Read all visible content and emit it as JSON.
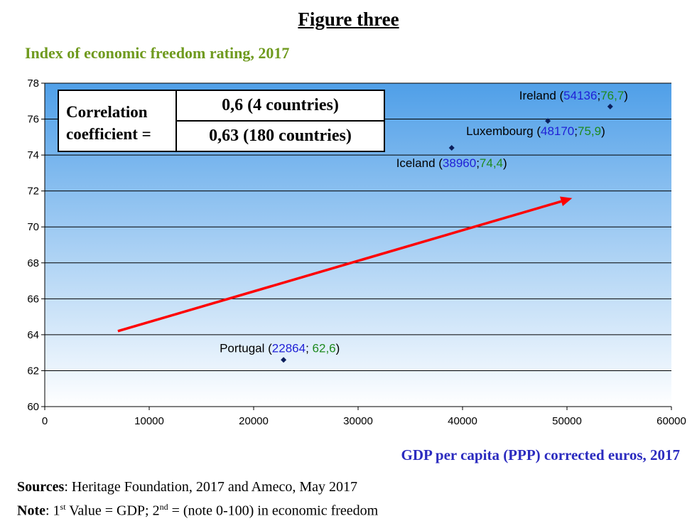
{
  "figure_title": "Figure three",
  "correlation": {
    "label": "Correlation coefficient =",
    "value_4": "0,6 (4 countries)",
    "value_180": "0,63 (180 countries)"
  },
  "sources": {
    "label": "Sources",
    "text": ": Heritage Foundation, 2017 and Ameco, May 2017"
  },
  "note": {
    "label": "Note",
    "text_pre": ": 1",
    "sup1": "st",
    "text_mid": " Value = GDP; 2",
    "sup2": "nd",
    "text_post": " = (note 0-100) in economic freedom"
  },
  "colors": {
    "title_green": "#6f9a1e",
    "xlabel_blue": "#2b2bbf",
    "gdp_blue": "#1f1fd6",
    "score_green": "#1e8a1e",
    "arrow_red": "#ff0000",
    "marker": "#0b1f5c",
    "bg_top": "#4f9fe8",
    "bg_bottom": "#ffffff"
  },
  "chart_data": {
    "type": "scatter",
    "title": "Index of economic freedom rating, 2017",
    "xlabel": "GDP per capita (PPP) corrected euros, 2017",
    "ylabel": "",
    "xlim": [
      0,
      60000
    ],
    "ylim": [
      60,
      78
    ],
    "x_ticks": [
      0,
      10000,
      20000,
      30000,
      40000,
      50000,
      60000
    ],
    "y_ticks": [
      60,
      62,
      64,
      66,
      68,
      70,
      72,
      74,
      76,
      78
    ],
    "grid": "horizontal",
    "points": [
      {
        "country": "Ireland",
        "x": 54136,
        "y": 76.7,
        "gdp_label": "54136",
        "score_label": "76,7",
        "sep": ";"
      },
      {
        "country": "Luxembourg",
        "x": 48170,
        "y": 75.9,
        "gdp_label": "48170",
        "score_label": "75,9",
        "sep": ";"
      },
      {
        "country": "Iceland",
        "x": 38960,
        "y": 74.4,
        "gdp_label": "38960",
        "score_label": "74,4",
        "sep": ";"
      },
      {
        "country": "Portugal",
        "x": 22864,
        "y": 62.6,
        "gdp_label": "22864",
        "score_label": "62,6",
        "sep": "; "
      }
    ],
    "trend_arrow": {
      "x1": 7000,
      "y1": 64.2,
      "x2": 50500,
      "y2": 71.6
    }
  }
}
